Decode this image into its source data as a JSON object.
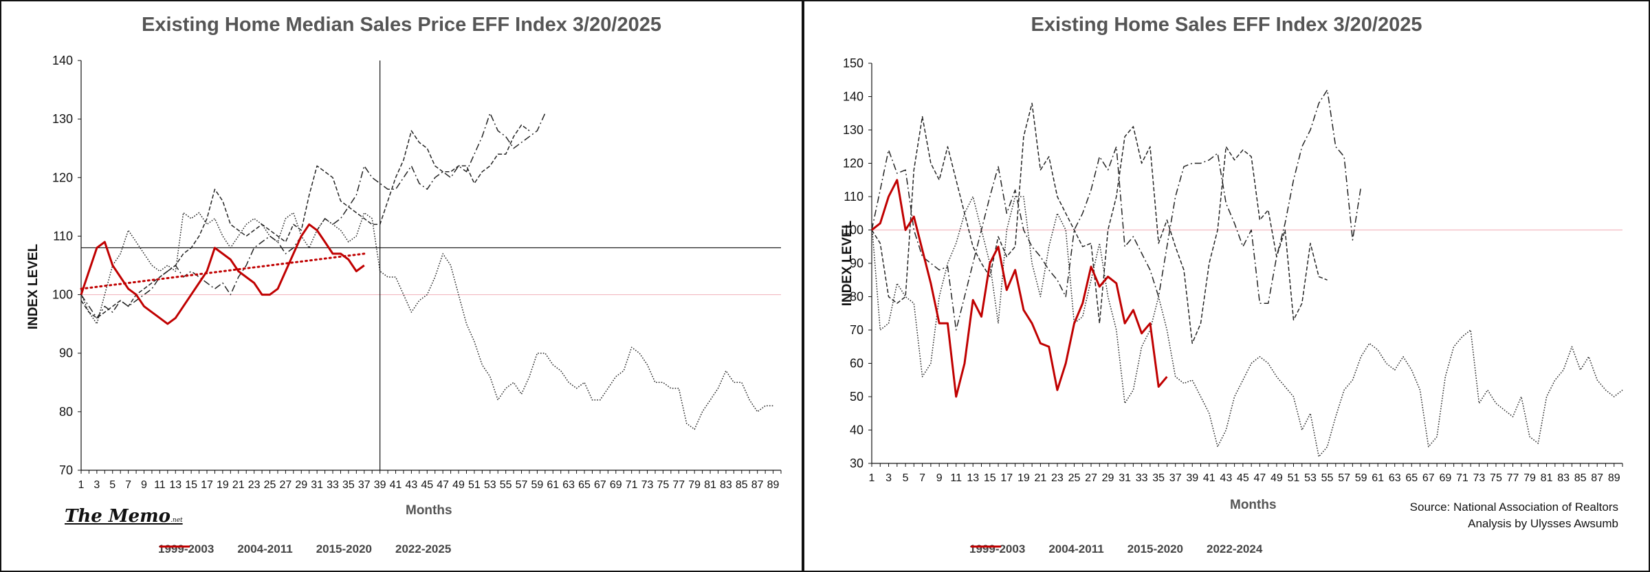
{
  "colors": {
    "red": "#c00000",
    "black": "#222222",
    "pink": "#f2b8c0",
    "grid": "#111111"
  },
  "chart_data": [
    {
      "type": "line",
      "title": "Existing Home Median Sales Price EFF  Index 3/20/2025",
      "ylabel": "INDEX LEVEL",
      "xlabel": "Months",
      "xlim": [
        1,
        90
      ],
      "ylim": [
        70,
        140
      ],
      "y_ticks": [
        70,
        80,
        90,
        100,
        110,
        120,
        130,
        140
      ],
      "x_tick_labels": [
        "1",
        "3",
        "5",
        "7",
        "9",
        "11",
        "13",
        "15",
        "17",
        "19",
        "21",
        "23",
        "25",
        "27",
        "29",
        "31",
        "33",
        "35",
        "37",
        "39",
        "41",
        "43",
        "45",
        "47",
        "49",
        "51",
        "53",
        "55",
        "57",
        "59",
        "61",
        "63",
        "65",
        "67",
        "69",
        "71",
        "73",
        "75",
        "77",
        "79",
        "81",
        "83",
        "85",
        "87",
        "89"
      ],
      "grid": false,
      "reference_line": 100,
      "crosshair": {
        "x": 39,
        "y": 108
      },
      "legend_position": "bottom",
      "brand_text": "The Memo",
      "brand_suffix": ".net",
      "series": [
        {
          "name": "1999-2003",
          "style": "dashdot",
          "color": "#222222",
          "values": [
            100,
            98,
            96,
            98,
            97,
            99,
            98,
            99,
            100,
            101,
            103,
            104,
            105,
            103,
            104,
            103,
            102,
            101,
            102,
            100,
            103,
            105,
            108,
            109,
            110,
            109,
            107,
            108,
            110,
            112,
            111,
            113,
            112,
            113,
            115,
            117,
            122,
            120,
            119,
            118,
            118,
            120,
            122,
            119,
            118,
            120,
            121,
            120,
            122,
            121,
            124,
            127,
            131,
            128,
            127,
            125,
            126,
            127,
            128,
            131
          ]
        },
        {
          "name": "2004-2011",
          "style": "dotted",
          "color": "#222222",
          "values": [
            100,
            97,
            95,
            100,
            105,
            107,
            111,
            109,
            107,
            105,
            104,
            105,
            104,
            114,
            113,
            114,
            112,
            113,
            110,
            108,
            110,
            112,
            113,
            112,
            110,
            109,
            113,
            114,
            110,
            108,
            111,
            113,
            112,
            111,
            109,
            110,
            114,
            113,
            104,
            103,
            103,
            100,
            97,
            99,
            100,
            103,
            107,
            105,
            100,
            95,
            92,
            88,
            86,
            82,
            84,
            85,
            83,
            86,
            90,
            90,
            88,
            87,
            85,
            84,
            85,
            82,
            82,
            84,
            86,
            87,
            91,
            90,
            88,
            85,
            85,
            84,
            84,
            78,
            77,
            80,
            82,
            84,
            87,
            85,
            85,
            82,
            80,
            81,
            81
          ]
        },
        {
          "name": "2015-2020",
          "style": "dashed",
          "color": "#222222",
          "values": [
            99,
            97,
            96,
            97,
            98,
            99,
            98,
            100,
            101,
            102,
            103,
            104,
            105,
            107,
            108,
            110,
            113,
            118,
            116,
            112,
            111,
            110,
            111,
            112,
            111,
            110,
            109,
            112,
            111,
            117,
            122,
            121,
            120,
            116,
            115,
            114,
            113,
            112,
            112,
            116,
            120,
            123,
            128,
            126,
            125,
            122,
            121,
            121,
            122,
            122,
            119,
            121,
            122,
            124,
            124,
            127,
            129,
            128
          ]
        },
        {
          "name": "2022-2025",
          "style": "solid",
          "color": "#c00000",
          "values": [
            100,
            104,
            108,
            109,
            105,
            103,
            101,
            100,
            98,
            97,
            96,
            95,
            96,
            98,
            100,
            102,
            104,
            108,
            107,
            106,
            104,
            103,
            102,
            100,
            100,
            101,
            104,
            107,
            110,
            112,
            111,
            109,
            107,
            107,
            106,
            104,
            105
          ]
        },
        {
          "name": "",
          "style": "trend",
          "color": "#c00000",
          "x": [
            1,
            37
          ],
          "values": [
            101,
            107
          ]
        }
      ]
    },
    {
      "type": "line",
      "title": "Existing Home  Sales  EFF  Index 3/20/2025",
      "ylabel": "INDEX LEVEL",
      "xlabel": "Months",
      "xlim": [
        1,
        90
      ],
      "ylim": [
        30,
        150
      ],
      "y_ticks": [
        30,
        40,
        50,
        60,
        70,
        80,
        90,
        100,
        110,
        120,
        130,
        140,
        150
      ],
      "x_tick_labels": [
        "1",
        "3",
        "5",
        "7",
        "9",
        "11",
        "13",
        "15",
        "17",
        "19",
        "21",
        "23",
        "25",
        "27",
        "29",
        "31",
        "33",
        "35",
        "37",
        "39",
        "41",
        "43",
        "45",
        "47",
        "49",
        "51",
        "53",
        "55",
        "57",
        "59",
        "61",
        "63",
        "65",
        "67",
        "69",
        "71",
        "73",
        "75",
        "77",
        "79",
        "81",
        "83",
        "85",
        "87",
        "89"
      ],
      "grid": false,
      "reference_line": 100,
      "legend_position": "bottom",
      "source_lines": [
        "Source: National Association of Realtors",
        "Analysis by Ulysses Awsumb"
      ],
      "series": [
        {
          "name": "1999-2003",
          "style": "dashdot",
          "color": "#222222",
          "values": [
            100,
            112,
            124,
            117,
            118,
            100,
            92,
            90,
            88,
            89,
            70,
            80,
            90,
            100,
            110,
            119,
            105,
            112,
            100,
            95,
            92,
            88,
            85,
            80,
            100,
            105,
            112,
            122,
            118,
            125,
            95,
            98,
            93,
            88,
            80,
            95,
            110,
            119,
            120,
            120,
            121,
            123,
            108,
            102,
            95,
            100,
            78,
            78,
            92,
            102,
            115,
            125,
            130,
            138,
            142,
            125,
            122,
            97,
            113
          ]
        },
        {
          "name": "2004-2011",
          "style": "dotted",
          "color": "#222222",
          "values": [
            102,
            70,
            72,
            84,
            80,
            78,
            56,
            60,
            80,
            90,
            96,
            105,
            110,
            100,
            90,
            72,
            100,
            110,
            110,
            90,
            80,
            95,
            105,
            100,
            72,
            74,
            85,
            96,
            80,
            70,
            48,
            52,
            65,
            70,
            80,
            70,
            56,
            54,
            55,
            50,
            45,
            35,
            40,
            50,
            55,
            60,
            62,
            60,
            56,
            53,
            50,
            40,
            45,
            32,
            35,
            44,
            52,
            55,
            62,
            66,
            64,
            60,
            58,
            62,
            58,
            52,
            35,
            38,
            56,
            65,
            68,
            70,
            48,
            52,
            48,
            46,
            44,
            50,
            38,
            36,
            50,
            55,
            58,
            65,
            58,
            62,
            55,
            52,
            50,
            52
          ]
        },
        {
          "name": "2015-2020",
          "style": "dashed",
          "color": "#222222",
          "values": [
            100,
            96,
            80,
            78,
            80,
            118,
            134,
            120,
            115,
            125,
            115,
            105,
            95,
            90,
            86,
            98,
            92,
            95,
            128,
            138,
            118,
            122,
            110,
            105,
            100,
            95,
            96,
            72,
            100,
            110,
            128,
            131,
            120,
            125,
            96,
            103,
            95,
            88,
            66,
            72,
            90,
            100,
            125,
            121,
            124,
            122,
            103,
            106,
            92,
            100,
            73,
            78,
            96,
            86,
            85
          ]
        },
        {
          "name": "2022-2024",
          "style": "solid",
          "color": "#c00000",
          "values": [
            100,
            102,
            110,
            115,
            100,
            104,
            94,
            84,
            72,
            72,
            50,
            60,
            79,
            74,
            90,
            95,
            82,
            88,
            76,
            72,
            66,
            65,
            52,
            60,
            72,
            78,
            89,
            83,
            86,
            84,
            72,
            76,
            69,
            72,
            53,
            56
          ]
        }
      ]
    }
  ]
}
